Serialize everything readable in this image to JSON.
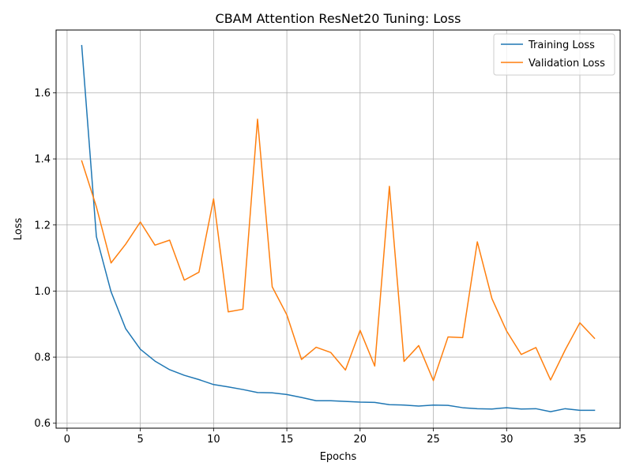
{
  "chart_data": {
    "type": "line",
    "title": "CBAM Attention ResNet20 Tuning: Loss",
    "xlabel": "Epochs",
    "ylabel": "Loss",
    "xlim": [
      -0.75,
      37.75
    ],
    "ylim": [
      0.585,
      1.79
    ],
    "xticks": [
      0,
      5,
      10,
      15,
      20,
      25,
      30,
      35
    ],
    "yticks": [
      0.6,
      0.8,
      1.0,
      1.2,
      1.4,
      1.6
    ],
    "ytick_labels": [
      "0.6",
      "0.8",
      "1.0",
      "1.2",
      "1.4",
      "1.6"
    ],
    "grid": true,
    "legend_position": "top-right",
    "x": [
      1,
      2,
      3,
      4,
      5,
      6,
      7,
      8,
      9,
      10,
      11,
      12,
      13,
      14,
      15,
      16,
      17,
      18,
      19,
      20,
      21,
      22,
      23,
      24,
      25,
      26,
      27,
      28,
      29,
      30,
      31,
      32,
      33,
      34,
      35,
      36
    ],
    "series": [
      {
        "name": "Training Loss",
        "color": "#1f77b4",
        "values": [
          1.743,
          1.165,
          0.998,
          0.886,
          0.824,
          0.788,
          0.762,
          0.745,
          0.732,
          0.717,
          0.71,
          0.702,
          0.693,
          0.692,
          0.687,
          0.678,
          0.668,
          0.668,
          0.666,
          0.664,
          0.663,
          0.656,
          0.655,
          0.652,
          0.655,
          0.654,
          0.647,
          0.644,
          0.643,
          0.647,
          0.643,
          0.644,
          0.635,
          0.644,
          0.639,
          0.639
        ]
      },
      {
        "name": "Validation Loss",
        "color": "#ff7f0e",
        "values": [
          1.394,
          1.255,
          1.085,
          1.142,
          1.209,
          1.139,
          1.154,
          1.033,
          1.057,
          1.279,
          0.937,
          0.945,
          1.52,
          1.013,
          0.928,
          0.793,
          0.83,
          0.814,
          0.761,
          0.881,
          0.773,
          1.317,
          0.787,
          0.835,
          0.729,
          0.861,
          0.859,
          1.149,
          0.977,
          0.879,
          0.808,
          0.829,
          0.731,
          0.822,
          0.904,
          0.857
        ]
      }
    ]
  }
}
